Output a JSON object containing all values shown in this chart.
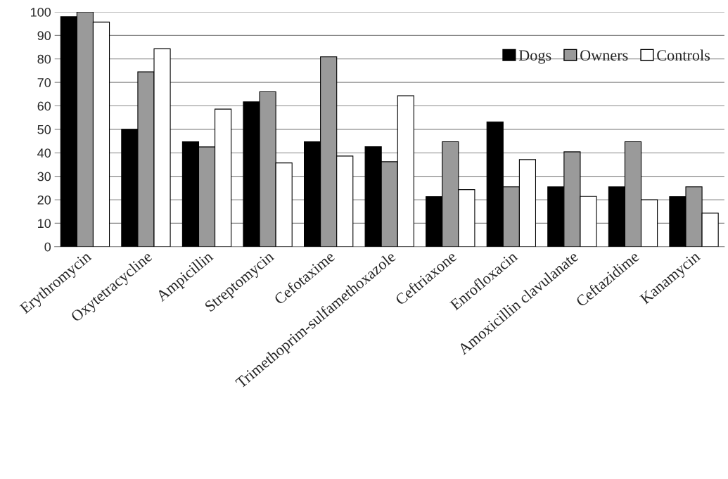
{
  "chart_data": {
    "type": "bar",
    "categories": [
      "Erythromycin",
      "Oxytetracycline",
      "Ampicillin",
      "Streptomycin",
      "Cefotaxime",
      "Trimethoprim-sulfamethoxazole",
      "Ceftriaxone",
      "Enrofloxacin",
      "Amoxicillin clavulanate",
      "Ceftazidime",
      "Kanamycin"
    ],
    "series": [
      {
        "name": "Dogs",
        "color": "#000000",
        "values": [
          98,
          50,
          44.7,
          61.7,
          44.7,
          42.6,
          21.3,
          53.2,
          25.5,
          25.5,
          21.3
        ]
      },
      {
        "name": "Owners",
        "color": "#9a9a9a",
        "values": [
          100,
          74.5,
          42.5,
          66,
          80.9,
          36.2,
          44.7,
          25.5,
          40.4,
          44.7,
          25.5
        ]
      },
      {
        "name": "Controls",
        "color": "#ffffff",
        "values": [
          95.7,
          84.3,
          58.6,
          35.7,
          38.6,
          64.3,
          24.3,
          37.1,
          21.4,
          20,
          14.3
        ]
      }
    ],
    "ylim": [
      0,
      100
    ],
    "yticks": [
      0,
      10,
      20,
      30,
      40,
      50,
      60,
      70,
      80,
      90,
      100
    ],
    "grid": "y",
    "legend": "top right"
  }
}
